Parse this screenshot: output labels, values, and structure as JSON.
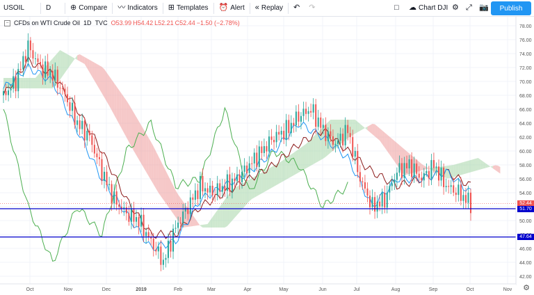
{
  "toolbar": {
    "symbol": "USOIL",
    "interval": "D",
    "compare_label": "Compare",
    "indicators_label": "Indicators",
    "templates_label": "Templates",
    "alert_label": "Alert",
    "replay_label": "Replay",
    "chart_name": "Chart DJI",
    "publish_label": "Publish"
  },
  "legend": {
    "title": "CFDs on WTI Crude Oil",
    "interval": "1D",
    "source": "TVC",
    "open": "O53.99",
    "high": "H54.42",
    "low": "L52.21",
    "close": "C52.44",
    "change": "−1.50 (−2.78%)"
  },
  "price_tags": {
    "last": "52.44",
    "line1": "51.70",
    "line2": "47.64"
  },
  "colors": {
    "up": "#26a69a",
    "down": "#ef5350",
    "tenkan": "#2196f3",
    "kijun": "#8b1a1a",
    "chikou": "#4caf50",
    "cloud_bull": "#a5d6a7",
    "cloud_bear": "#ef9a9a",
    "hline": "#0000cc",
    "accent": "#2196f3"
  },
  "chart_data": {
    "type": "candlestick",
    "y_axis": {
      "min": 40,
      "max": 78,
      "ticks": [
        "78.00",
        "76.00",
        "74.00",
        "72.00",
        "70.00",
        "68.00",
        "66.00",
        "64.00",
        "62.00",
        "60.00",
        "58.00",
        "56.00",
        "54.00",
        "52.00",
        "50.00",
        "48.00",
        "46.00",
        "44.00",
        "42.00"
      ]
    },
    "x_axis": {
      "ticks": [
        "Oct",
        "Nov",
        "Dec",
        "2019",
        "Feb",
        "Mar",
        "Apr",
        "May",
        "Jun",
        "Jul",
        "Aug",
        "Sep",
        "Oct",
        "Nov"
      ]
    },
    "horizontal_lines": [
      51.7,
      47.64
    ],
    "last_price": 52.44,
    "series": [
      {
        "name": "price",
        "x": [
          0,
          10,
          20,
          30,
          40,
          50,
          60,
          70,
          80,
          90,
          100,
          110,
          120,
          130,
          140,
          150,
          160,
          170,
          180,
          190,
          200,
          210,
          220,
          230,
          240,
          250,
          260,
          270,
          280,
          290,
          300,
          310,
          320,
          330,
          340,
          350,
          360,
          370,
          380
        ],
        "values": [
          68,
          70,
          75,
          72,
          71,
          68,
          64,
          62,
          57,
          53,
          51,
          50,
          47,
          44,
          49,
          52,
          55,
          54,
          55,
          56,
          58,
          60,
          62,
          63,
          65,
          66,
          63,
          61,
          63,
          56,
          52,
          53,
          57,
          58,
          56,
          58,
          55,
          54,
          52.44
        ]
      },
      {
        "name": "tenkan",
        "x": [
          0,
          20,
          40,
          60,
          80,
          100,
          120,
          140,
          160,
          180,
          200,
          220,
          240,
          260,
          280,
          300,
          320,
          340,
          360,
          380
        ],
        "values": [
          69,
          72,
          70,
          63,
          56,
          51,
          46,
          47,
          53,
          55,
          57,
          60,
          64,
          62,
          59,
          52,
          56,
          56,
          57,
          54
        ]
      },
      {
        "name": "kijun",
        "x": [
          0,
          20,
          40,
          60,
          80,
          100,
          120,
          140,
          160,
          180,
          200,
          220,
          240,
          260,
          280,
          300,
          320,
          340,
          360,
          380
        ],
        "values": [
          68,
          73,
          71,
          66,
          60,
          53,
          48,
          48,
          52,
          54,
          56,
          58,
          61,
          63,
          60,
          57,
          55,
          56,
          57,
          55
        ]
      },
      {
        "name": "chikou",
        "x": [
          0,
          20,
          40,
          60,
          80,
          100,
          120,
          140,
          160,
          180,
          200,
          220,
          240,
          260,
          280
        ],
        "values": [
          66,
          52,
          44,
          52,
          48,
          60,
          64,
          55,
          56,
          66,
          54,
          60,
          58,
          52,
          55
        ]
      }
    ]
  }
}
